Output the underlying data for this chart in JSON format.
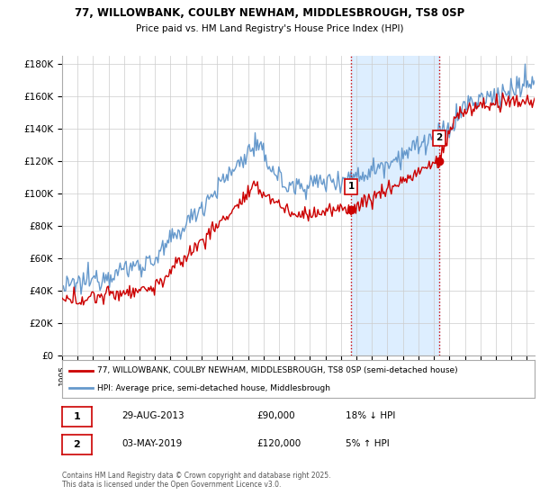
{
  "title1": "77, WILLOWBANK, COULBY NEWHAM, MIDDLESBROUGH, TS8 0SP",
  "title2": "Price paid vs. HM Land Registry's House Price Index (HPI)",
  "ylabel_ticks": [
    "£0",
    "£20K",
    "£40K",
    "£60K",
    "£80K",
    "£100K",
    "£120K",
    "£140K",
    "£160K",
    "£180K"
  ],
  "ytick_values": [
    0,
    20000,
    40000,
    60000,
    80000,
    100000,
    120000,
    140000,
    160000,
    180000
  ],
  "ylim": [
    0,
    185000
  ],
  "xlim_start": 1995,
  "xlim_end": 2025.5,
  "sale1_date": 2013.66,
  "sale1_price": 90000,
  "sale2_date": 2019.33,
  "sale2_price": 120000,
  "line_color_property": "#cc0000",
  "line_color_hpi": "#6699cc",
  "shade_color": "#ddeeff",
  "vline_color": "#cc0000",
  "legend_label1": "77, WILLOWBANK, COULBY NEWHAM, MIDDLESBROUGH, TS8 0SP (semi-detached house)",
  "legend_label2": "HPI: Average price, semi-detached house, Middlesbrough",
  "table_row1": [
    "1",
    "29-AUG-2013",
    "£90,000",
    "18% ↓ HPI"
  ],
  "table_row2": [
    "2",
    "03-MAY-2019",
    "£120,000",
    "5% ↑ HPI"
  ],
  "footer": "Contains HM Land Registry data © Crown copyright and database right 2025.\nThis data is licensed under the Open Government Licence v3.0.",
  "background_color": "#ffffff",
  "grid_color": "#cccccc"
}
